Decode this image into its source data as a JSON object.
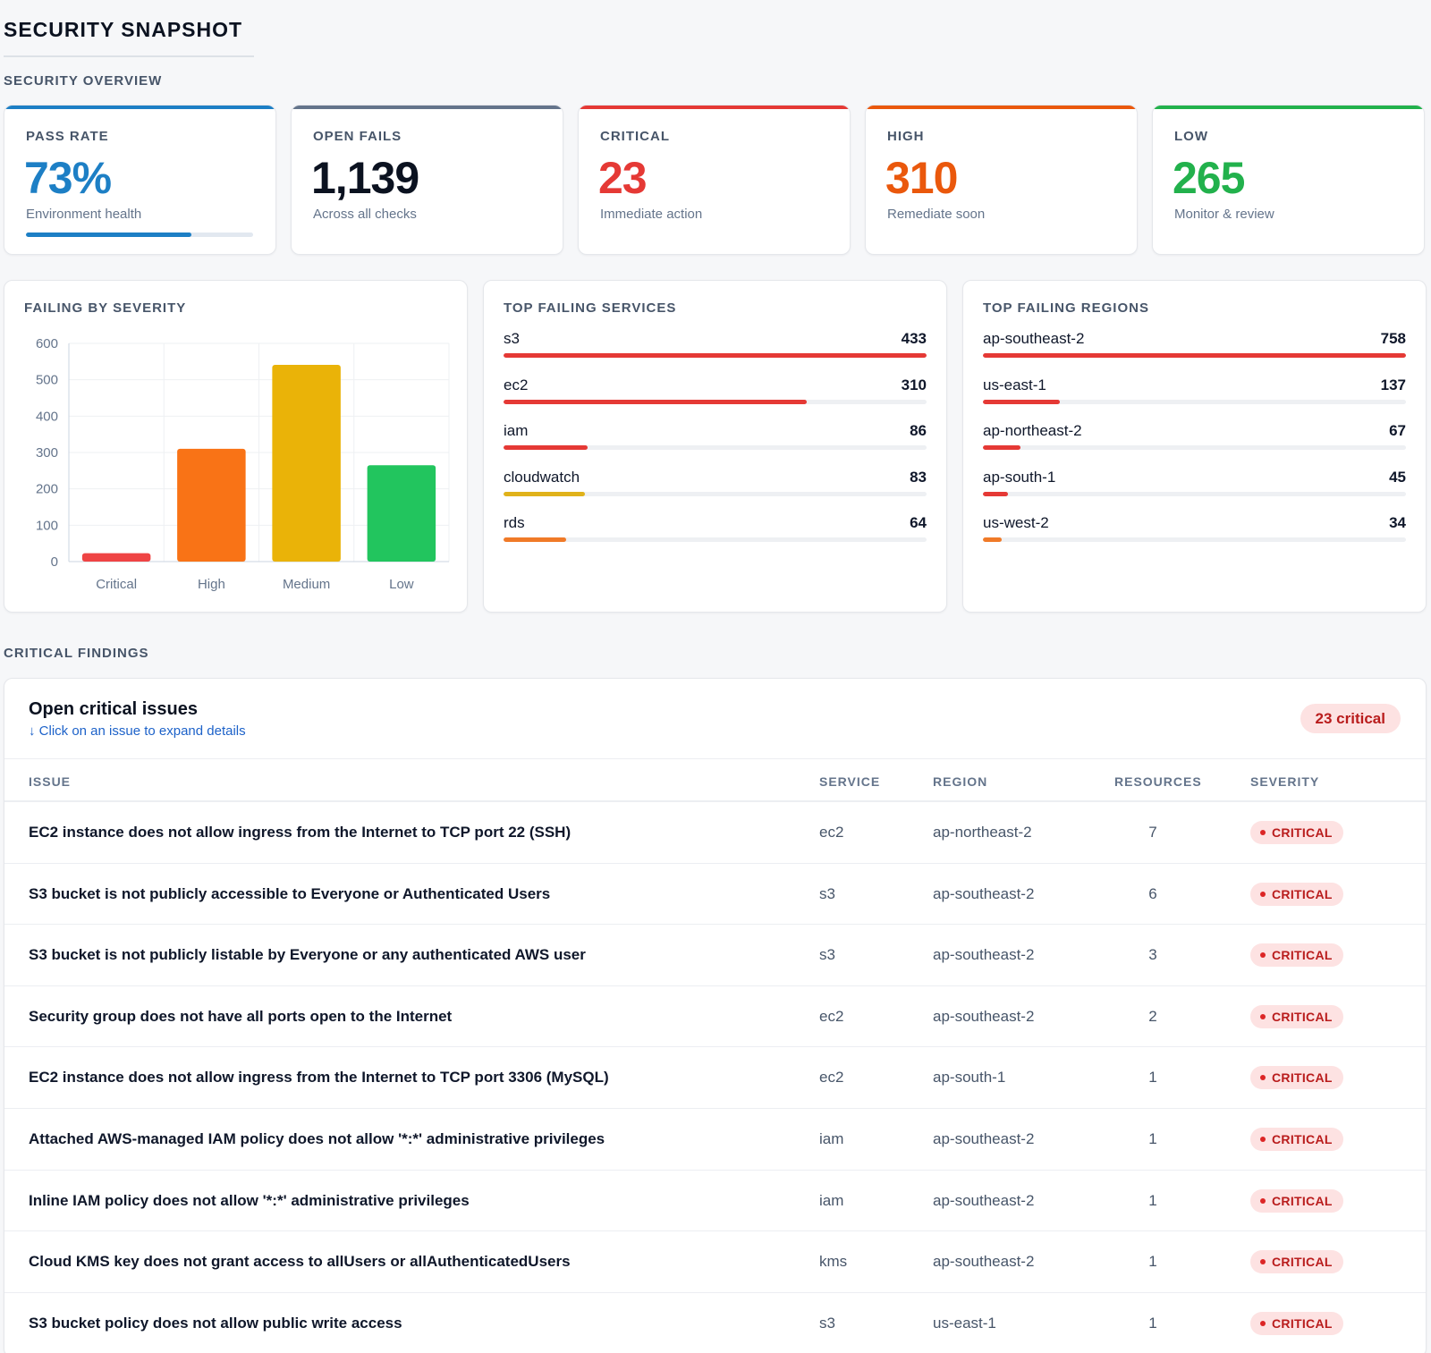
{
  "page": {
    "title": "SECURITY SNAPSHOT"
  },
  "overview": {
    "section_label": "SECURITY OVERVIEW",
    "pass_rate": {
      "label": "PASS RATE",
      "value": "73%",
      "sub": "Environment health",
      "progress": 0.73,
      "color": "#1d7fc5"
    },
    "open_fails": {
      "label": "OPEN FAILS",
      "value": "1,139",
      "sub": "Across all checks",
      "color": "#64748b"
    },
    "critical": {
      "label": "CRITICAL",
      "value": "23",
      "sub": "Immediate action",
      "color": "#e53935"
    },
    "high": {
      "label": "HIGH",
      "value": "310",
      "sub": "Remediate soon",
      "color": "#ea580c"
    },
    "low": {
      "label": "LOW",
      "value": "265",
      "sub": "Monitor & review",
      "color": "#22b14c"
    }
  },
  "severity_panel": {
    "title": "FAILING BY SEVERITY"
  },
  "chart_data": {
    "type": "bar",
    "title": "FAILING BY SEVERITY",
    "categories": [
      "Critical",
      "High",
      "Medium",
      "Low"
    ],
    "values": [
      23,
      310,
      541,
      265
    ],
    "colors": [
      "#ef4444",
      "#f97316",
      "#eab308",
      "#22c55e"
    ],
    "ylim": [
      0,
      600
    ],
    "yticks": [
      0,
      100,
      200,
      300,
      400,
      500,
      600
    ],
    "grid": true,
    "legend": "none"
  },
  "services_panel": {
    "title": "TOP FAILING SERVICES",
    "items": [
      {
        "name": "s3",
        "count": "433",
        "fraction": 1.0,
        "color": "#e53935"
      },
      {
        "name": "ec2",
        "count": "310",
        "fraction": 0.716,
        "color": "#e53935"
      },
      {
        "name": "iam",
        "count": "86",
        "fraction": 0.199,
        "color": "#e53935"
      },
      {
        "name": "cloudwatch",
        "count": "83",
        "fraction": 0.192,
        "color": "#e0b21a"
      },
      {
        "name": "rds",
        "count": "64",
        "fraction": 0.148,
        "color": "#f07a28"
      }
    ]
  },
  "regions_panel": {
    "title": "TOP FAILING REGIONS",
    "items": [
      {
        "name": "ap-southeast-2",
        "count": "758",
        "fraction": 1.0,
        "color": "#e53935"
      },
      {
        "name": "us-east-1",
        "count": "137",
        "fraction": 0.181,
        "color": "#e53935"
      },
      {
        "name": "ap-northeast-2",
        "count": "67",
        "fraction": 0.088,
        "color": "#e53935"
      },
      {
        "name": "ap-south-1",
        "count": "45",
        "fraction": 0.059,
        "color": "#e53935"
      },
      {
        "name": "us-west-2",
        "count": "34",
        "fraction": 0.045,
        "color": "#f07a28"
      }
    ]
  },
  "findings": {
    "section_label": "CRITICAL FINDINGS",
    "title": "Open critical issues",
    "hint": "↓ Click on an issue to expand details",
    "badge": "23 critical",
    "columns": {
      "issue": "ISSUE",
      "service": "SERVICE",
      "region": "REGION",
      "resources": "RESOURCES",
      "severity": "SEVERITY"
    },
    "rows": [
      {
        "issue": "EC2 instance does not allow ingress from the Internet to TCP port 22 (SSH)",
        "service": "ec2",
        "region": "ap-northeast-2",
        "resources": "7",
        "severity": "CRITICAL"
      },
      {
        "issue": "S3 bucket is not publicly accessible to Everyone or Authenticated Users",
        "service": "s3",
        "region": "ap-southeast-2",
        "resources": "6",
        "severity": "CRITICAL"
      },
      {
        "issue": "S3 bucket is not publicly listable by Everyone or any authenticated AWS user",
        "service": "s3",
        "region": "ap-southeast-2",
        "resources": "3",
        "severity": "CRITICAL"
      },
      {
        "issue": "Security group does not have all ports open to the Internet",
        "service": "ec2",
        "region": "ap-southeast-2",
        "resources": "2",
        "severity": "CRITICAL"
      },
      {
        "issue": "EC2 instance does not allow ingress from the Internet to TCP port 3306 (MySQL)",
        "service": "ec2",
        "region": "ap-south-1",
        "resources": "1",
        "severity": "CRITICAL"
      },
      {
        "issue": "Attached AWS-managed IAM policy does not allow '*:*' administrative privileges",
        "service": "iam",
        "region": "ap-southeast-2",
        "resources": "1",
        "severity": "CRITICAL"
      },
      {
        "issue": "Inline IAM policy does not allow '*:*' administrative privileges",
        "service": "iam",
        "region": "ap-southeast-2",
        "resources": "1",
        "severity": "CRITICAL"
      },
      {
        "issue": "Cloud KMS key does not grant access to allUsers or allAuthenticatedUsers",
        "service": "kms",
        "region": "ap-southeast-2",
        "resources": "1",
        "severity": "CRITICAL"
      },
      {
        "issue": "S3 bucket policy does not allow public write access",
        "service": "s3",
        "region": "us-east-1",
        "resources": "1",
        "severity": "CRITICAL"
      }
    ]
  }
}
